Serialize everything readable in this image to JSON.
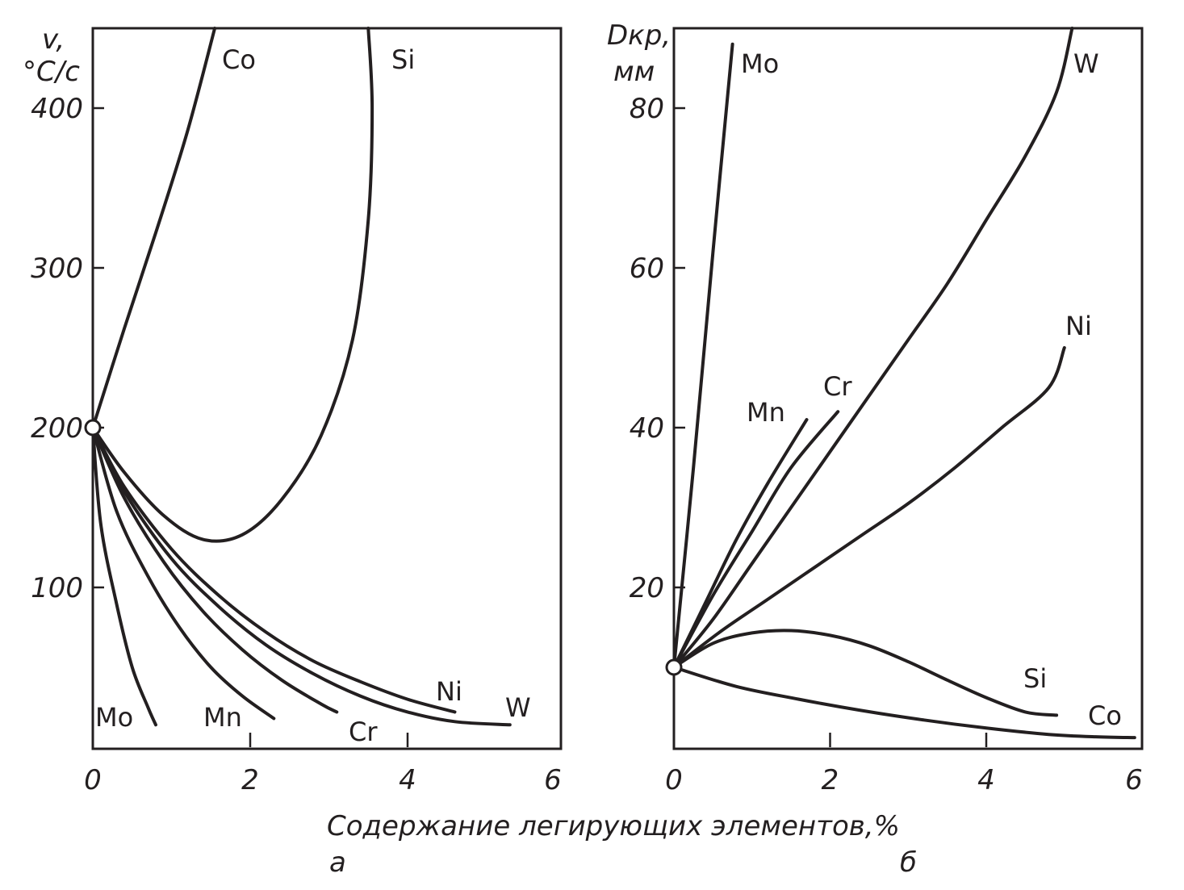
{
  "figure": {
    "xlabel": "Содержание легирующих элементов,%",
    "panel_a_letter": "а",
    "panel_b_letter": "б"
  },
  "chart_data": [
    {
      "type": "line",
      "panel": "а",
      "ylabel_line1": "v,",
      "ylabel_line2": "°C/c",
      "xlim": [
        0,
        6
      ],
      "ylim": [
        0,
        450
      ],
      "xticks": [
        "0",
        "2",
        "4",
        "6"
      ],
      "yticks": [
        "100",
        "200",
        "300",
        "400"
      ],
      "xtick_values": [
        0,
        2,
        4,
        6
      ],
      "ytick_values": [
        100,
        200,
        300,
        400
      ],
      "origin": [
        0,
        200
      ],
      "series": [
        {
          "name": "Co",
          "points": [
            [
              0,
              200
            ],
            [
              0.4,
              262
            ],
            [
              0.8,
              322
            ],
            [
              1.2,
              385
            ],
            [
              1.55,
              450
            ]
          ]
        },
        {
          "name": "Si",
          "points": [
            [
              0,
              200
            ],
            [
              0.4,
              172
            ],
            [
              0.9,
              145
            ],
            [
              1.4,
              130
            ],
            [
              1.9,
              133
            ],
            [
              2.4,
              155
            ],
            [
              2.9,
              195
            ],
            [
              3.3,
              255
            ],
            [
              3.5,
              330
            ],
            [
              3.55,
              400
            ],
            [
              3.5,
              450
            ]
          ]
        },
        {
          "name": "Ni",
          "points": [
            [
              0,
              200
            ],
            [
              0.4,
              163
            ],
            [
              1.0,
              124
            ],
            [
              1.6,
              95
            ],
            [
              2.2,
              72
            ],
            [
              2.8,
              54
            ],
            [
              3.4,
              41
            ],
            [
              4.0,
              30
            ],
            [
              4.6,
              22
            ]
          ]
        },
        {
          "name": "W",
          "points": [
            [
              0,
              200
            ],
            [
              0.4,
              160
            ],
            [
              1.0,
              118
            ],
            [
              1.6,
              88
            ],
            [
              2.2,
              64
            ],
            [
              2.8,
              46
            ],
            [
              3.4,
              32
            ],
            [
              4.0,
              22
            ],
            [
              4.6,
              16
            ],
            [
              5.3,
              14
            ]
          ]
        },
        {
          "name": "Cr",
          "points": [
            [
              0,
              200
            ],
            [
              0.4,
              156
            ],
            [
              0.9,
              116
            ],
            [
              1.4,
              85
            ],
            [
              1.9,
              61
            ],
            [
              2.4,
              42
            ],
            [
              2.9,
              27
            ],
            [
              3.1,
              22
            ]
          ]
        },
        {
          "name": "Mn",
          "points": [
            [
              0,
              200
            ],
            [
              0.3,
              148
            ],
            [
              0.7,
              107
            ],
            [
              1.1,
              75
            ],
            [
              1.5,
              50
            ],
            [
              1.9,
              32
            ],
            [
              2.3,
              18
            ]
          ]
        },
        {
          "name": "Mo",
          "points": [
            [
              0,
              200
            ],
            [
              0.1,
              140
            ],
            [
              0.3,
              90
            ],
            [
              0.5,
              50
            ],
            [
              0.7,
              25
            ],
            [
              0.8,
              14
            ]
          ]
        }
      ]
    },
    {
      "type": "line",
      "panel": "б",
      "ylabel_line1": "Dкр,",
      "ylabel_line2": "мм",
      "xlim": [
        0,
        6
      ],
      "ylim": [
        0,
        90
      ],
      "xticks": [
        "0",
        "2",
        "4",
        "6"
      ],
      "yticks": [
        "20",
        "40",
        "60",
        "80"
      ],
      "xtick_values": [
        0,
        2,
        4,
        6
      ],
      "ytick_values": [
        20,
        40,
        60,
        80
      ],
      "origin": [
        0,
        10
      ],
      "series": [
        {
          "name": "Mo",
          "points": [
            [
              0,
              10
            ],
            [
              0.25,
              35
            ],
            [
              0.5,
              62
            ],
            [
              0.75,
              88
            ]
          ]
        },
        {
          "name": "W",
          "points": [
            [
              0,
              10
            ],
            [
              0.5,
              16
            ],
            [
              1.0,
              23
            ],
            [
              1.5,
              30
            ],
            [
              2.0,
              37
            ],
            [
              2.5,
              44
            ],
            [
              3.0,
              51
            ],
            [
              3.5,
              58
            ],
            [
              4.0,
              66
            ],
            [
              4.5,
              74
            ],
            [
              4.9,
              82
            ],
            [
              5.1,
              90
            ]
          ]
        },
        {
          "name": "Ni",
          "points": [
            [
              0,
              10
            ],
            [
              0.6,
              14.5
            ],
            [
              1.2,
              18.5
            ],
            [
              1.8,
              22.5
            ],
            [
              2.4,
              26.5
            ],
            [
              3.0,
              30.5
            ],
            [
              3.6,
              35
            ],
            [
              4.2,
              40
            ],
            [
              4.8,
              45
            ],
            [
              5.0,
              50
            ]
          ]
        },
        {
          "name": "Cr",
          "points": [
            [
              0,
              10
            ],
            [
              0.5,
              19
            ],
            [
              1.0,
              27
            ],
            [
              1.5,
              35
            ],
            [
              2.1,
              42
            ]
          ]
        },
        {
          "name": "Mn",
          "points": [
            [
              0,
              10
            ],
            [
              0.4,
              18
            ],
            [
              0.8,
              26
            ],
            [
              1.2,
              33
            ],
            [
              1.7,
              41
            ]
          ]
        },
        {
          "name": "Si",
          "points": [
            [
              0,
              10
            ],
            [
              0.5,
              13
            ],
            [
              1.0,
              14.3
            ],
            [
              1.5,
              14.6
            ],
            [
              2.0,
              14
            ],
            [
              2.5,
              12.7
            ],
            [
              3.0,
              10.7
            ],
            [
              3.5,
              8.4
            ],
            [
              4.0,
              6.2
            ],
            [
              4.5,
              4.4
            ],
            [
              4.9,
              4
            ]
          ]
        },
        {
          "name": "Co",
          "points": [
            [
              0,
              10
            ],
            [
              0.8,
              7.6
            ],
            [
              1.6,
              6
            ],
            [
              2.4,
              4.6
            ],
            [
              3.2,
              3.4
            ],
            [
              4.0,
              2.4
            ],
            [
              4.8,
              1.6
            ],
            [
              5.4,
              1.3
            ],
            [
              5.9,
              1.2
            ]
          ]
        }
      ]
    }
  ]
}
